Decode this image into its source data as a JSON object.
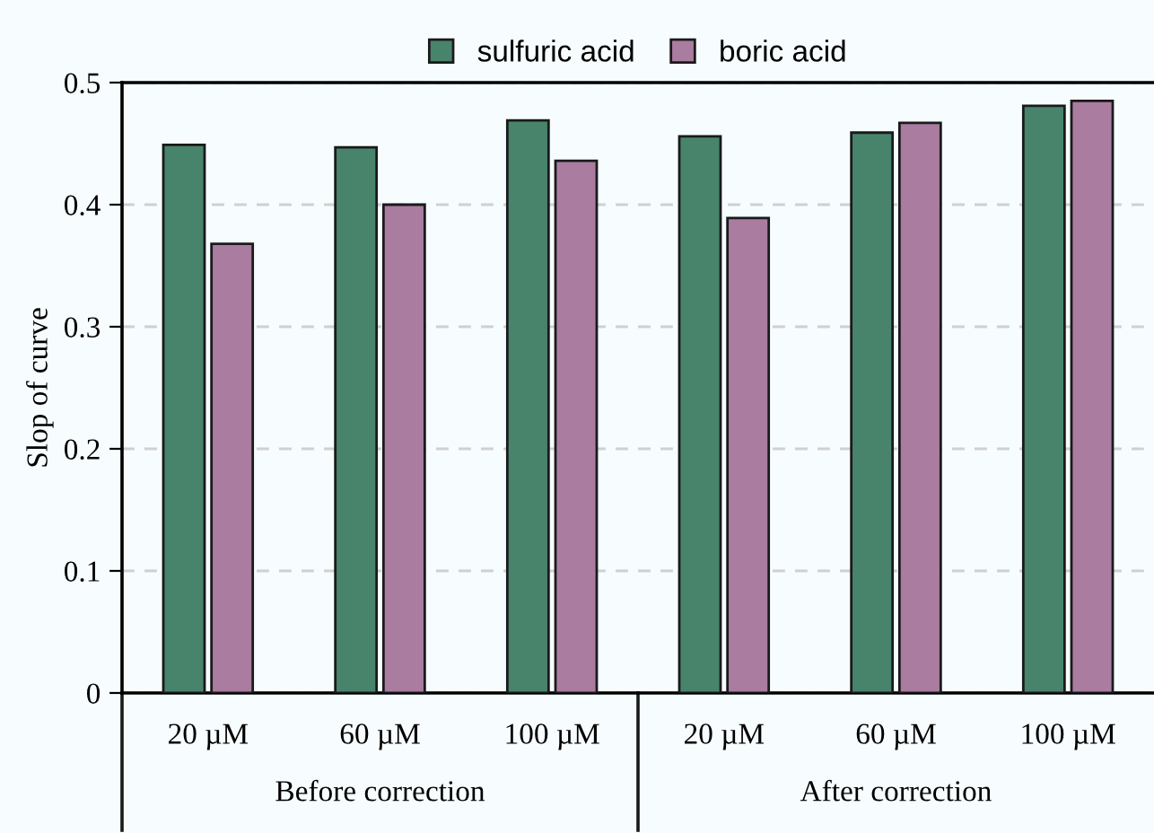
{
  "chart_data": {
    "type": "bar",
    "ylabel": "Slop of curve",
    "categories": [
      "20 µM",
      "60 µM",
      "100 µM",
      "20 µM",
      "60 µM",
      "100 µM"
    ],
    "series": [
      {
        "name": "sulfuric acid",
        "color": "#48846c",
        "values": [
          0.449,
          0.447,
          0.469,
          0.456,
          0.459,
          0.481
        ]
      },
      {
        "name": "boric acid",
        "color": "#aa7ca0",
        "values": [
          0.368,
          0.4,
          0.436,
          0.389,
          0.467,
          0.485
        ]
      }
    ],
    "annotations": [
      "Before correction",
      "After correction"
    ],
    "ylim": [
      0,
      0.5
    ],
    "yticks": [
      0,
      0.1,
      0.2,
      0.3,
      0.4,
      0.5
    ],
    "grid": "y",
    "legend": "top"
  }
}
